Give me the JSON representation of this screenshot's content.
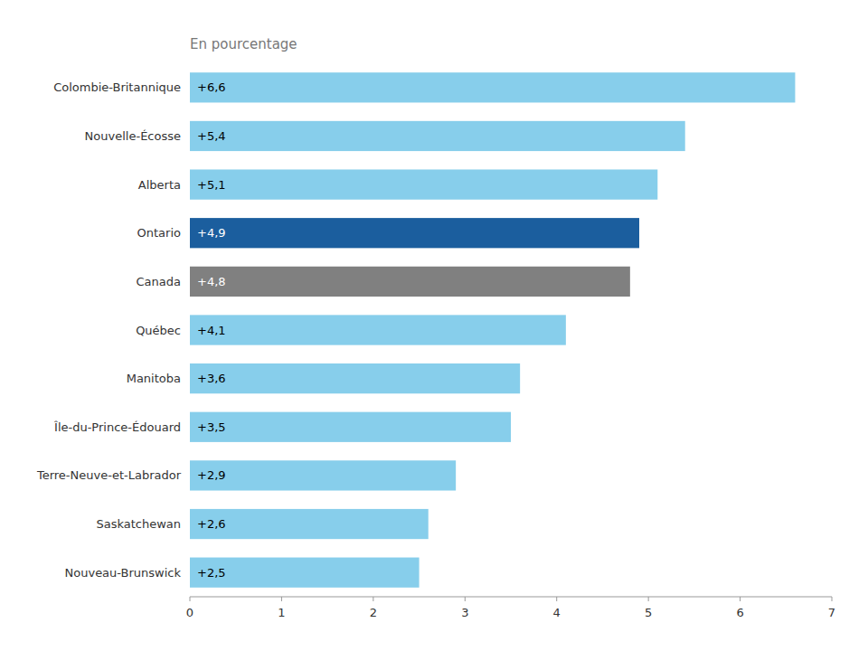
{
  "chart_data": {
    "type": "bar",
    "orientation": "horizontal",
    "title": "En pourcentage",
    "categories": [
      "Nouveau-Brunswick",
      "Saskatchewan",
      "Terre-Neuve-et-Labrador",
      "Île-du-Prince-Édouard",
      "Manitoba",
      "Québec",
      "Canada",
      "Ontario",
      "Alberta",
      "Nouvelle-Écosse",
      "Colombie-Britannique"
    ],
    "values": [
      2.5,
      2.6,
      2.9,
      3.5,
      3.6,
      4.1,
      4.8,
      4.9,
      5.1,
      5.4,
      6.6
    ],
    "value_labels": [
      "+2,5",
      "+2,6",
      "+2,9",
      "+3,5",
      "+3,6",
      "+4,1",
      "+4,8",
      "+4,9",
      "+5,1",
      "+5,4",
      "+6,6"
    ],
    "colors": [
      "#87CEEB",
      "#87CEEB",
      "#87CEEB",
      "#87CEEB",
      "#87CEEB",
      "#87CEEB",
      "#808080",
      "#1B5E9E",
      "#87CEEB",
      "#87CEEB",
      "#87CEEB"
    ],
    "data_labels": true,
    "grid": false,
    "xlim": [
      0,
      7
    ],
    "xticks": [
      0,
      1,
      2,
      3,
      4,
      5,
      6,
      7
    ]
  }
}
